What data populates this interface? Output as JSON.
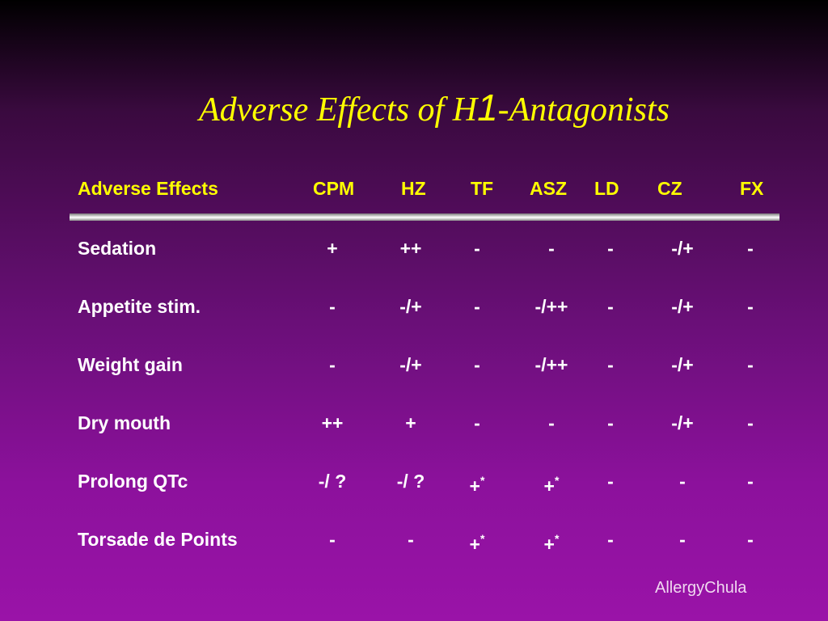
{
  "title": {
    "prefix": "Adverse Effects of H",
    "subscript": "1",
    "suffix": "-Antagonists"
  },
  "table": {
    "headers": [
      "Adverse Effects",
      "CPM",
      "HZ",
      "TF",
      "ASZ",
      "LD",
      "CZ",
      "FX"
    ],
    "rows": [
      {
        "label": "Sedation",
        "values": [
          "+",
          "++",
          "-",
          "-",
          "-",
          "-/+",
          "-"
        ]
      },
      {
        "label": "Appetite stim.",
        "values": [
          "-",
          "-/+",
          "-",
          "-/++",
          "-",
          "-/+",
          "-"
        ]
      },
      {
        "label": "Weight gain",
        "values": [
          "-",
          "-/+",
          "-",
          "-/++",
          "-",
          "-/+",
          "-"
        ]
      },
      {
        "label": "Dry mouth",
        "values": [
          "++",
          "+",
          "-",
          "-",
          "-",
          "-/+",
          "-"
        ]
      },
      {
        "label": "Prolong QTc",
        "values": [
          "-/ ?",
          "-/ ?",
          "+*",
          "+*",
          "-",
          "-",
          "-"
        ]
      },
      {
        "label": "Torsade de Points",
        "values": [
          "-",
          "-",
          "+*",
          "+*",
          "-",
          "-",
          "-"
        ]
      }
    ]
  },
  "footer": "AllergyChula",
  "colors": {
    "title": "#ffff00",
    "header": "#ffff00",
    "body_text": "#ffffff"
  }
}
